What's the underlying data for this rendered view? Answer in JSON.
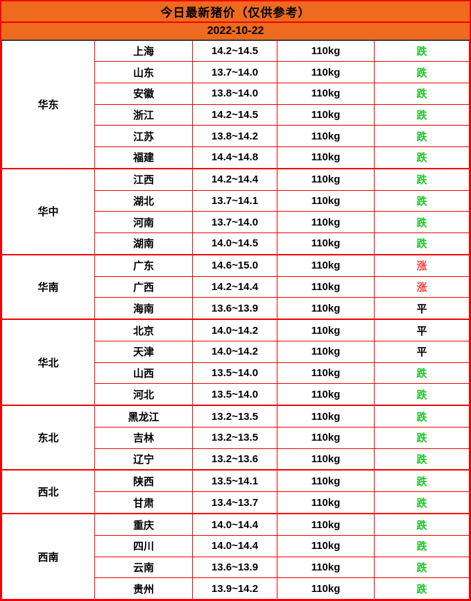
{
  "header": {
    "title": "今日最新猪价（仅供参考）",
    "date": "2022-10-22"
  },
  "colors": {
    "header_bg": "#ed6a1e",
    "border": "#f50000",
    "date_divider": "#3c3c3c",
    "trend_down": "#22c42c",
    "trend_up": "#fb3e3e",
    "trend_flat": "#000000"
  },
  "table": {
    "regions": [
      {
        "name": "华东",
        "rows": [
          {
            "province": "上海",
            "price": "14.2~14.5",
            "weight": "110kg",
            "trend": "跌",
            "direction": "down"
          },
          {
            "province": "山东",
            "price": "13.7~14.0",
            "weight": "110kg",
            "trend": "跌",
            "direction": "down"
          },
          {
            "province": "安徽",
            "price": "13.8~14.0",
            "weight": "110kg",
            "trend": "跌",
            "direction": "down"
          },
          {
            "province": "浙江",
            "price": "14.2~14.5",
            "weight": "110kg",
            "trend": "跌",
            "direction": "down"
          },
          {
            "province": "江苏",
            "price": "13.8~14.2",
            "weight": "110kg",
            "trend": "跌",
            "direction": "down"
          },
          {
            "province": "福建",
            "price": "14.4~14.8",
            "weight": "110kg",
            "trend": "跌",
            "direction": "down"
          }
        ]
      },
      {
        "name": "华中",
        "rows": [
          {
            "province": "江西",
            "price": "14.2~14.4",
            "weight": "110kg",
            "trend": "跌",
            "direction": "down"
          },
          {
            "province": "湖北",
            "price": "13.7~14.1",
            "weight": "110kg",
            "trend": "跌",
            "direction": "down"
          },
          {
            "province": "河南",
            "price": "13.7~14.0",
            "weight": "110kg",
            "trend": "跌",
            "direction": "down"
          },
          {
            "province": "湖南",
            "price": "14.0~14.5",
            "weight": "110kg",
            "trend": "跌",
            "direction": "down"
          }
        ]
      },
      {
        "name": "华南",
        "rows": [
          {
            "province": "广东",
            "price": "14.6~15.0",
            "weight": "110kg",
            "trend": "涨",
            "direction": "up"
          },
          {
            "province": "广西",
            "price": "14.2~14.4",
            "weight": "110kg",
            "trend": "涨",
            "direction": "up"
          },
          {
            "province": "海南",
            "price": "13.6~13.9",
            "weight": "110kg",
            "trend": "平",
            "direction": "flat"
          }
        ]
      },
      {
        "name": "华北",
        "rows": [
          {
            "province": "北京",
            "price": "14.0~14.2",
            "weight": "110kg",
            "trend": "平",
            "direction": "flat"
          },
          {
            "province": "天津",
            "price": "14.0~14.2",
            "weight": "110kg",
            "trend": "平",
            "direction": "flat"
          },
          {
            "province": "山西",
            "price": "13.5~14.0",
            "weight": "110kg",
            "trend": "跌",
            "direction": "down"
          },
          {
            "province": "河北",
            "price": "13.5~14.0",
            "weight": "110kg",
            "trend": "跌",
            "direction": "down"
          }
        ]
      },
      {
        "name": "东北",
        "rows": [
          {
            "province": "黑龙江",
            "price": "13.2~13.5",
            "weight": "110kg",
            "trend": "跌",
            "direction": "down"
          },
          {
            "province": "吉林",
            "price": "13.2~13.5",
            "weight": "110kg",
            "trend": "跌",
            "direction": "down"
          },
          {
            "province": "辽宁",
            "price": "13.2~13.6",
            "weight": "110kg",
            "trend": "跌",
            "direction": "down"
          }
        ]
      },
      {
        "name": "西北",
        "rows": [
          {
            "province": "陕西",
            "price": "13.5~14.1",
            "weight": "110kg",
            "trend": "跌",
            "direction": "down"
          },
          {
            "province": "甘肃",
            "price": "13.4~13.7",
            "weight": "110kg",
            "trend": "跌",
            "direction": "down"
          }
        ]
      },
      {
        "name": "西南",
        "rows": [
          {
            "province": "重庆",
            "price": "14.0~14.4",
            "weight": "110kg",
            "trend": "跌",
            "direction": "down"
          },
          {
            "province": "四川",
            "price": "14.0~14.4",
            "weight": "110kg",
            "trend": "跌",
            "direction": "down"
          },
          {
            "province": "云南",
            "price": "13.6~13.9",
            "weight": "110kg",
            "trend": "跌",
            "direction": "down"
          },
          {
            "province": "贵州",
            "price": "13.9~14.2",
            "weight": "110kg",
            "trend": "跌",
            "direction": "down"
          }
        ]
      }
    ]
  }
}
